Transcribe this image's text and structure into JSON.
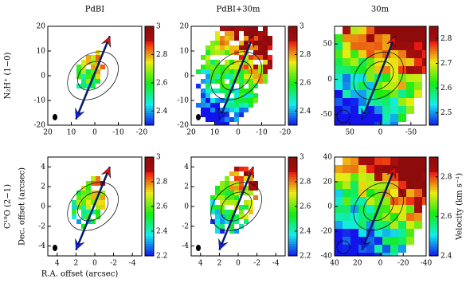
{
  "columns": [
    "PdBI",
    "PdBI+30m",
    "30m"
  ],
  "rows": [
    "N₂H⁺ (1−0)",
    "C¹⁸O (2−1)"
  ],
  "y_axis_label": "Dec. offset (arcsec)",
  "x_axis_label": "R.A. offset (arcsec)",
  "colorbar_label": "Velocity (km s⁻¹)",
  "panels": [
    {
      "xlim": [
        20,
        -20
      ],
      "ylim": [
        -20,
        20
      ],
      "xticks": [
        20,
        10,
        0,
        -10,
        -20
      ],
      "yticks": [
        -20,
        -10,
        0,
        10,
        20
      ],
      "clim": [
        2.3,
        3.0
      ],
      "cticks": [
        2.4,
        2.6,
        2.8,
        3
      ]
    },
    {
      "xlim": [
        20,
        -20
      ],
      "ylim": [
        -20,
        20
      ],
      "xticks": [
        20,
        10,
        0,
        -10,
        -20
      ],
      "yticks": [
        -20,
        -10,
        0,
        10,
        20
      ],
      "clim": [
        2.3,
        3.0
      ],
      "cticks": [
        2.4,
        2.6,
        2.8,
        3
      ]
    },
    {
      "xlim": [
        75,
        -75
      ],
      "ylim": [
        -65,
        75
      ],
      "xticks": [
        50,
        0,
        -50
      ],
      "yticks": [
        -50,
        0,
        50
      ],
      "clim": [
        2.45,
        2.85
      ],
      "cticks": [
        2.5,
        2.6,
        2.7,
        2.8
      ]
    },
    {
      "xlim": [
        5,
        -5
      ],
      "ylim": [
        -5,
        5
      ],
      "xticks": [
        4,
        2,
        0,
        -2,
        -4
      ],
      "yticks": [
        -4,
        -2,
        0,
        2,
        4
      ],
      "clim": [
        2.2,
        3.0
      ],
      "cticks": [
        2.2,
        2.4,
        2.6,
        2.8,
        3
      ]
    },
    {
      "xlim": [
        5,
        -5
      ],
      "ylim": [
        -5,
        5
      ],
      "xticks": [
        4,
        2,
        0,
        -2,
        -4
      ],
      "yticks": [
        -4,
        -2,
        0,
        2,
        4
      ],
      "clim": [
        2.2,
        3.0
      ],
      "cticks": [
        2.2,
        2.4,
        2.6,
        2.8,
        3
      ]
    },
    {
      "xlim": [
        40,
        -40
      ],
      "ylim": [
        -40,
        40
      ],
      "xticks": [
        40,
        20,
        0,
        -20,
        -40
      ],
      "yticks": [
        -40,
        -20,
        0,
        20,
        40
      ],
      "clim": [
        2.4,
        2.9
      ],
      "cticks": [
        2.4,
        2.6,
        2.8
      ]
    }
  ]
}
